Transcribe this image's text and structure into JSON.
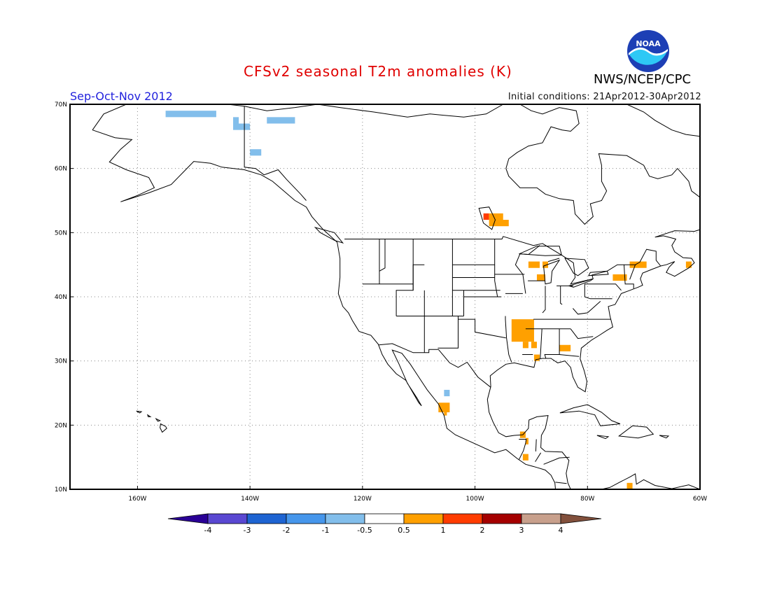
{
  "header": {
    "title": "CFSv2 seasonal T2m anomalies (K)",
    "period": "Sep-Oct-Nov 2012",
    "initial_conditions": "Initial conditions: 21Apr2012-30Apr2012",
    "agency": "NWS/NCEP/CPC",
    "logo_text": "NOAA"
  },
  "map": {
    "projection": "equirectangular",
    "lon_range": [
      -172,
      -60
    ],
    "lat_range": [
      10,
      70
    ],
    "lon_tick_labels": [
      "160W",
      "140W",
      "120W",
      "100W",
      "80W",
      "60W"
    ],
    "lat_tick_labels": [
      "70N",
      "60N",
      "50N",
      "40N",
      "30N",
      "20N",
      "10N"
    ],
    "grid": "dotted",
    "anomaly_cells": [
      {
        "lon": [
          -155,
          -146
        ],
        "lat": [
          68,
          69
        ],
        "class": "-1"
      },
      {
        "lon": [
          -143,
          -140
        ],
        "lat": [
          66,
          67
        ],
        "class": "-1"
      },
      {
        "lon": [
          -143,
          -142
        ],
        "lat": [
          67,
          68
        ],
        "class": "-1"
      },
      {
        "lon": [
          -137,
          -132
        ],
        "lat": [
          67,
          68
        ],
        "class": "-1"
      },
      {
        "lon": [
          -140,
          -138
        ],
        "lat": [
          62,
          63
        ],
        "class": "-1"
      },
      {
        "lon": [
          -105.5,
          -104.5
        ],
        "lat": [
          24.5,
          25.5
        ],
        "class": "-1"
      },
      {
        "lon": [
          -98.5,
          -97.5
        ],
        "lat": [
          52,
          53
        ],
        "class": "2"
      },
      {
        "lon": [
          -97.5,
          -95
        ],
        "lat": [
          52,
          53
        ],
        "class": "1"
      },
      {
        "lon": [
          -97.5,
          -94
        ],
        "lat": [
          51,
          52
        ],
        "class": "1"
      },
      {
        "lon": [
          -90.5,
          -88.5
        ],
        "lat": [
          44.5,
          45.5
        ],
        "class": "1"
      },
      {
        "lon": [
          -88,
          -87
        ],
        "lat": [
          44.5,
          45.5
        ],
        "class": "1"
      },
      {
        "lon": [
          -89,
          -87.5
        ],
        "lat": [
          42.5,
          43.5
        ],
        "class": "1"
      },
      {
        "lon": [
          -75.5,
          -73
        ],
        "lat": [
          42.5,
          43.5
        ],
        "class": "1"
      },
      {
        "lon": [
          -72.5,
          -69.5
        ],
        "lat": [
          44.5,
          45.5
        ],
        "class": "1"
      },
      {
        "lon": [
          -62.5,
          -61.5
        ],
        "lat": [
          44.5,
          45.5
        ],
        "class": "1"
      },
      {
        "lon": [
          -93.5,
          -89.5
        ],
        "lat": [
          33,
          36.5
        ],
        "class": "1"
      },
      {
        "lon": [
          -91.5,
          -90.5
        ],
        "lat": [
          32,
          33
        ],
        "class": "1"
      },
      {
        "lon": [
          -90,
          -89
        ],
        "lat": [
          32,
          33
        ],
        "class": "1"
      },
      {
        "lon": [
          -89.5,
          -88.5
        ],
        "lat": [
          30,
          31
        ],
        "class": "1"
      },
      {
        "lon": [
          -85,
          -83
        ],
        "lat": [
          31.5,
          32.5
        ],
        "class": "1"
      },
      {
        "lon": [
          -106.5,
          -104.5
        ],
        "lat": [
          22,
          23.5
        ],
        "class": "1"
      },
      {
        "lon": [
          -105.5,
          -105
        ],
        "lat": [
          21.5,
          22
        ],
        "class": "1"
      },
      {
        "lon": [
          -92,
          -91
        ],
        "lat": [
          18,
          19
        ],
        "class": "1"
      },
      {
        "lon": [
          -91,
          -90.5
        ],
        "lat": [
          17,
          18
        ],
        "class": "1"
      },
      {
        "lon": [
          -91.5,
          -90.5
        ],
        "lat": [
          14.5,
          15.5
        ],
        "class": "1"
      },
      {
        "lon": [
          -73,
          -72
        ],
        "lat": [
          10,
          11
        ],
        "class": "1"
      }
    ]
  },
  "colorbar": {
    "labels": [
      "-4",
      "-3",
      "-2",
      "-1",
      "-0.5",
      "0.5",
      "1",
      "2",
      "3",
      "4"
    ],
    "colors": [
      "#2a0096",
      "#5a48d2",
      "#1e64d2",
      "#4696eb",
      "#82beeb",
      "#ffffff",
      "#ffa000",
      "#ff3c00",
      "#a50000",
      "#c8a08c",
      "#82503c"
    ]
  }
}
